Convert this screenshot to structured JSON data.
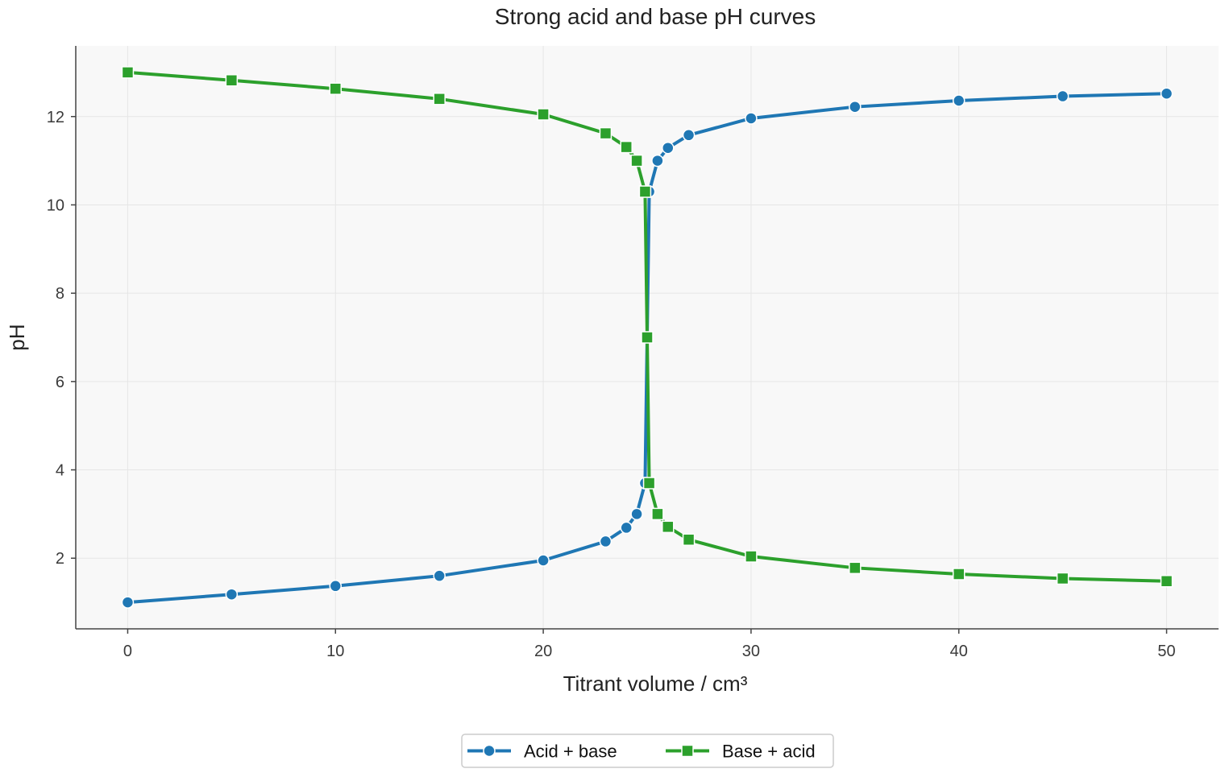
{
  "chart_data": {
    "type": "line",
    "title": "Strong acid and base pH curves",
    "xlabel": "Titrant volume / cm³",
    "ylabel": "pH",
    "xlim": [
      -2.5,
      52.5
    ],
    "ylim": [
      0.4,
      13.6
    ],
    "xticks": [
      "0",
      "10",
      "20",
      "30",
      "40",
      "50"
    ],
    "yticks": [
      "2",
      "4",
      "6",
      "8",
      "10",
      "12"
    ],
    "grid": true,
    "legend_position": "bottom-center",
    "background_color": "#f8f8f8",
    "series": [
      {
        "name": "Acid + base",
        "color": "#1f77b4",
        "marker": "circle",
        "x": [
          0,
          5,
          10,
          15,
          20,
          23,
          24,
          24.5,
          24.9,
          25,
          25.1,
          25.5,
          26,
          27,
          30,
          35,
          40,
          45,
          50
        ],
        "y": [
          1.0,
          1.18,
          1.37,
          1.6,
          1.95,
          2.38,
          2.69,
          3.0,
          3.7,
          7.0,
          10.3,
          11.0,
          11.29,
          11.58,
          11.96,
          12.22,
          12.36,
          12.46,
          12.52
        ]
      },
      {
        "name": "Base + acid",
        "color": "#2ca02c",
        "marker": "square",
        "x": [
          0,
          5,
          10,
          15,
          20,
          23,
          24,
          24.5,
          24.9,
          25,
          25.1,
          25.5,
          26,
          27,
          30,
          35,
          40,
          45,
          50
        ],
        "y": [
          13.0,
          12.82,
          12.63,
          12.4,
          12.05,
          11.62,
          11.31,
          11.0,
          10.3,
          7.0,
          3.7,
          3.0,
          2.71,
          2.42,
          2.04,
          1.78,
          1.64,
          1.54,
          1.48
        ]
      }
    ]
  }
}
